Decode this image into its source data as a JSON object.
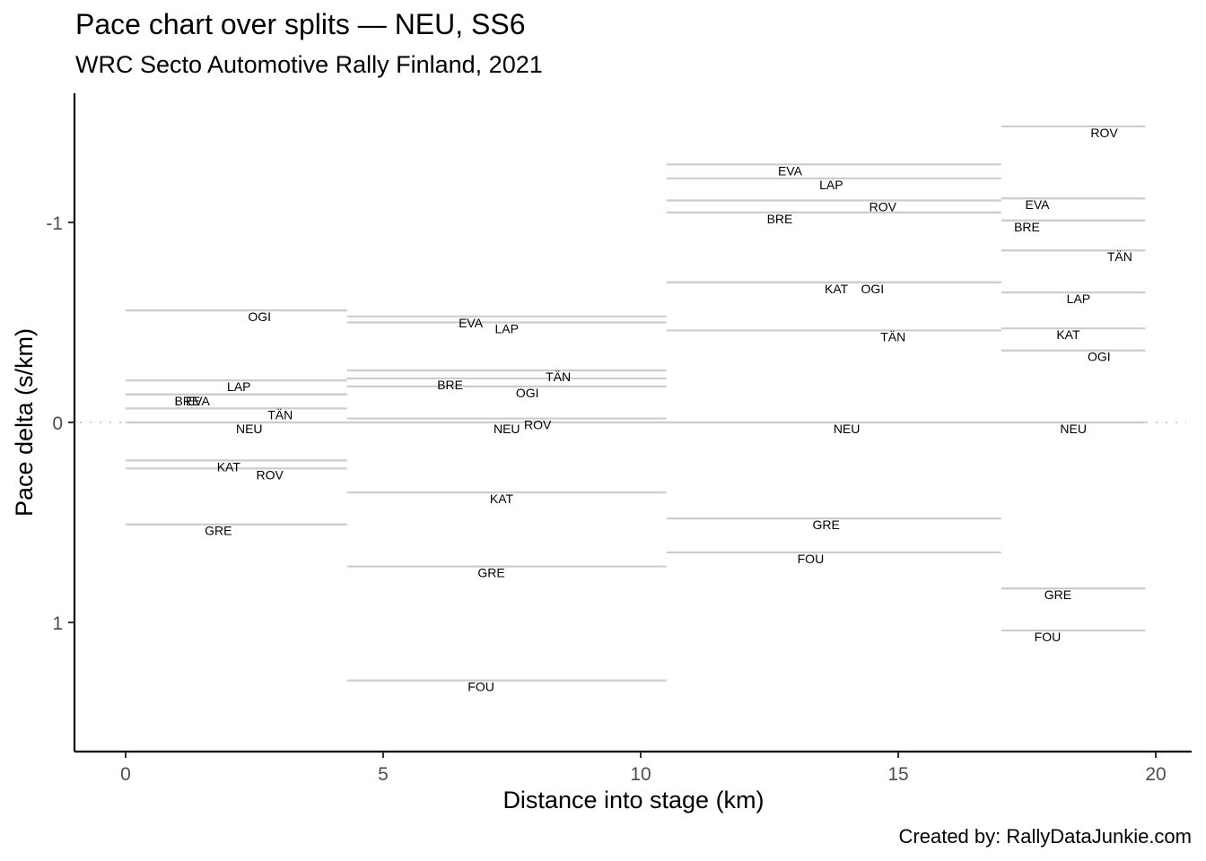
{
  "chart_data": {
    "type": "line",
    "title": "Pace chart over splits — NEU, SS6",
    "subtitle": "WRC Secto Automotive Rally Finland, 2021",
    "caption": "Created by: RallyDataJunkie.com",
    "xlabel": "Distance into stage (km)",
    "ylabel": "Pace delta (s/km)",
    "xlim": [
      -1,
      20.7
    ],
    "ylim": [
      1.65,
      -1.65
    ],
    "y_reversed": true,
    "x_ticks": [
      0,
      5,
      10,
      15,
      20
    ],
    "x_tick_labels": [
      "0",
      "5",
      "10",
      "15",
      "20"
    ],
    "y_ticks": [
      -1,
      0,
      1
    ],
    "y_tick_labels": [
      "-1",
      "0",
      "1"
    ],
    "reference_line": 0,
    "grid": false,
    "segment_color": "#cccccc",
    "splits": [
      {
        "start": 0,
        "end": 4.3,
        "entries": [
          {
            "driver": "OGI",
            "pace": -0.56,
            "label_x": 2.6
          },
          {
            "driver": "LAP",
            "pace": -0.21,
            "label_x": 2.2
          },
          {
            "driver": "BRE",
            "pace": -0.14,
            "label_x": 1.2
          },
          {
            "driver": "EVA",
            "pace": -0.14,
            "label_x": 1.4
          },
          {
            "driver": "TÄN",
            "pace": -0.07,
            "label_x": 3.0
          },
          {
            "driver": "NEU",
            "pace": 0.0,
            "label_x": 2.4
          },
          {
            "driver": "KAT",
            "pace": 0.19,
            "label_x": 2.0
          },
          {
            "driver": "ROV",
            "pace": 0.23,
            "label_x": 2.8
          },
          {
            "driver": "GRE",
            "pace": 0.51,
            "label_x": 1.8
          }
        ]
      },
      {
        "start": 4.3,
        "end": 10.5,
        "entries": [
          {
            "driver": "EVA",
            "pace": -0.53,
            "label_x": 6.7
          },
          {
            "driver": "LAP",
            "pace": -0.5,
            "label_x": 7.4
          },
          {
            "driver": "TÄN",
            "pace": -0.26,
            "label_x": 8.4
          },
          {
            "driver": "BRE",
            "pace": -0.22,
            "label_x": 6.3
          },
          {
            "driver": "OGI",
            "pace": -0.18,
            "label_x": 7.8
          },
          {
            "driver": "ROV",
            "pace": -0.02,
            "label_x": 8.0
          },
          {
            "driver": "NEU",
            "pace": 0.0,
            "label_x": 7.4
          },
          {
            "driver": "KAT",
            "pace": 0.35,
            "label_x": 7.3
          },
          {
            "driver": "GRE",
            "pace": 0.72,
            "label_x": 7.1
          },
          {
            "driver": "FOU",
            "pace": 1.29,
            "label_x": 6.9
          }
        ]
      },
      {
        "start": 10.5,
        "end": 17.0,
        "entries": [
          {
            "driver": "EVA",
            "pace": -1.29,
            "label_x": 12.9
          },
          {
            "driver": "LAP",
            "pace": -1.22,
            "label_x": 13.7
          },
          {
            "driver": "ROV",
            "pace": -1.11,
            "label_x": 14.7
          },
          {
            "driver": "BRE",
            "pace": -1.05,
            "label_x": 12.7
          },
          {
            "driver": "KAT",
            "pace": -0.7,
            "label_x": 13.8
          },
          {
            "driver": "OGI",
            "pace": -0.7,
            "label_x": 14.5
          },
          {
            "driver": "TÄN",
            "pace": -0.46,
            "label_x": 14.9
          },
          {
            "driver": "NEU",
            "pace": 0.0,
            "label_x": 14.0
          },
          {
            "driver": "GRE",
            "pace": 0.48,
            "label_x": 13.6
          },
          {
            "driver": "FOU",
            "pace": 0.65,
            "label_x": 13.3
          }
        ]
      },
      {
        "start": 17.0,
        "end": 19.8,
        "entries": [
          {
            "driver": "ROV",
            "pace": -1.48,
            "label_x": 19.0
          },
          {
            "driver": "EVA",
            "pace": -1.12,
            "label_x": 17.7
          },
          {
            "driver": "BRE",
            "pace": -1.01,
            "label_x": 17.5
          },
          {
            "driver": "TÄN",
            "pace": -0.86,
            "label_x": 19.3
          },
          {
            "driver": "LAP",
            "pace": -0.65,
            "label_x": 18.5
          },
          {
            "driver": "KAT",
            "pace": -0.47,
            "label_x": 18.3
          },
          {
            "driver": "OGI",
            "pace": -0.36,
            "label_x": 18.9
          },
          {
            "driver": "NEU",
            "pace": 0.0,
            "label_x": 18.4
          },
          {
            "driver": "GRE",
            "pace": 0.83,
            "label_x": 18.1
          },
          {
            "driver": "FOU",
            "pace": 1.04,
            "label_x": 17.9
          }
        ]
      }
    ]
  }
}
